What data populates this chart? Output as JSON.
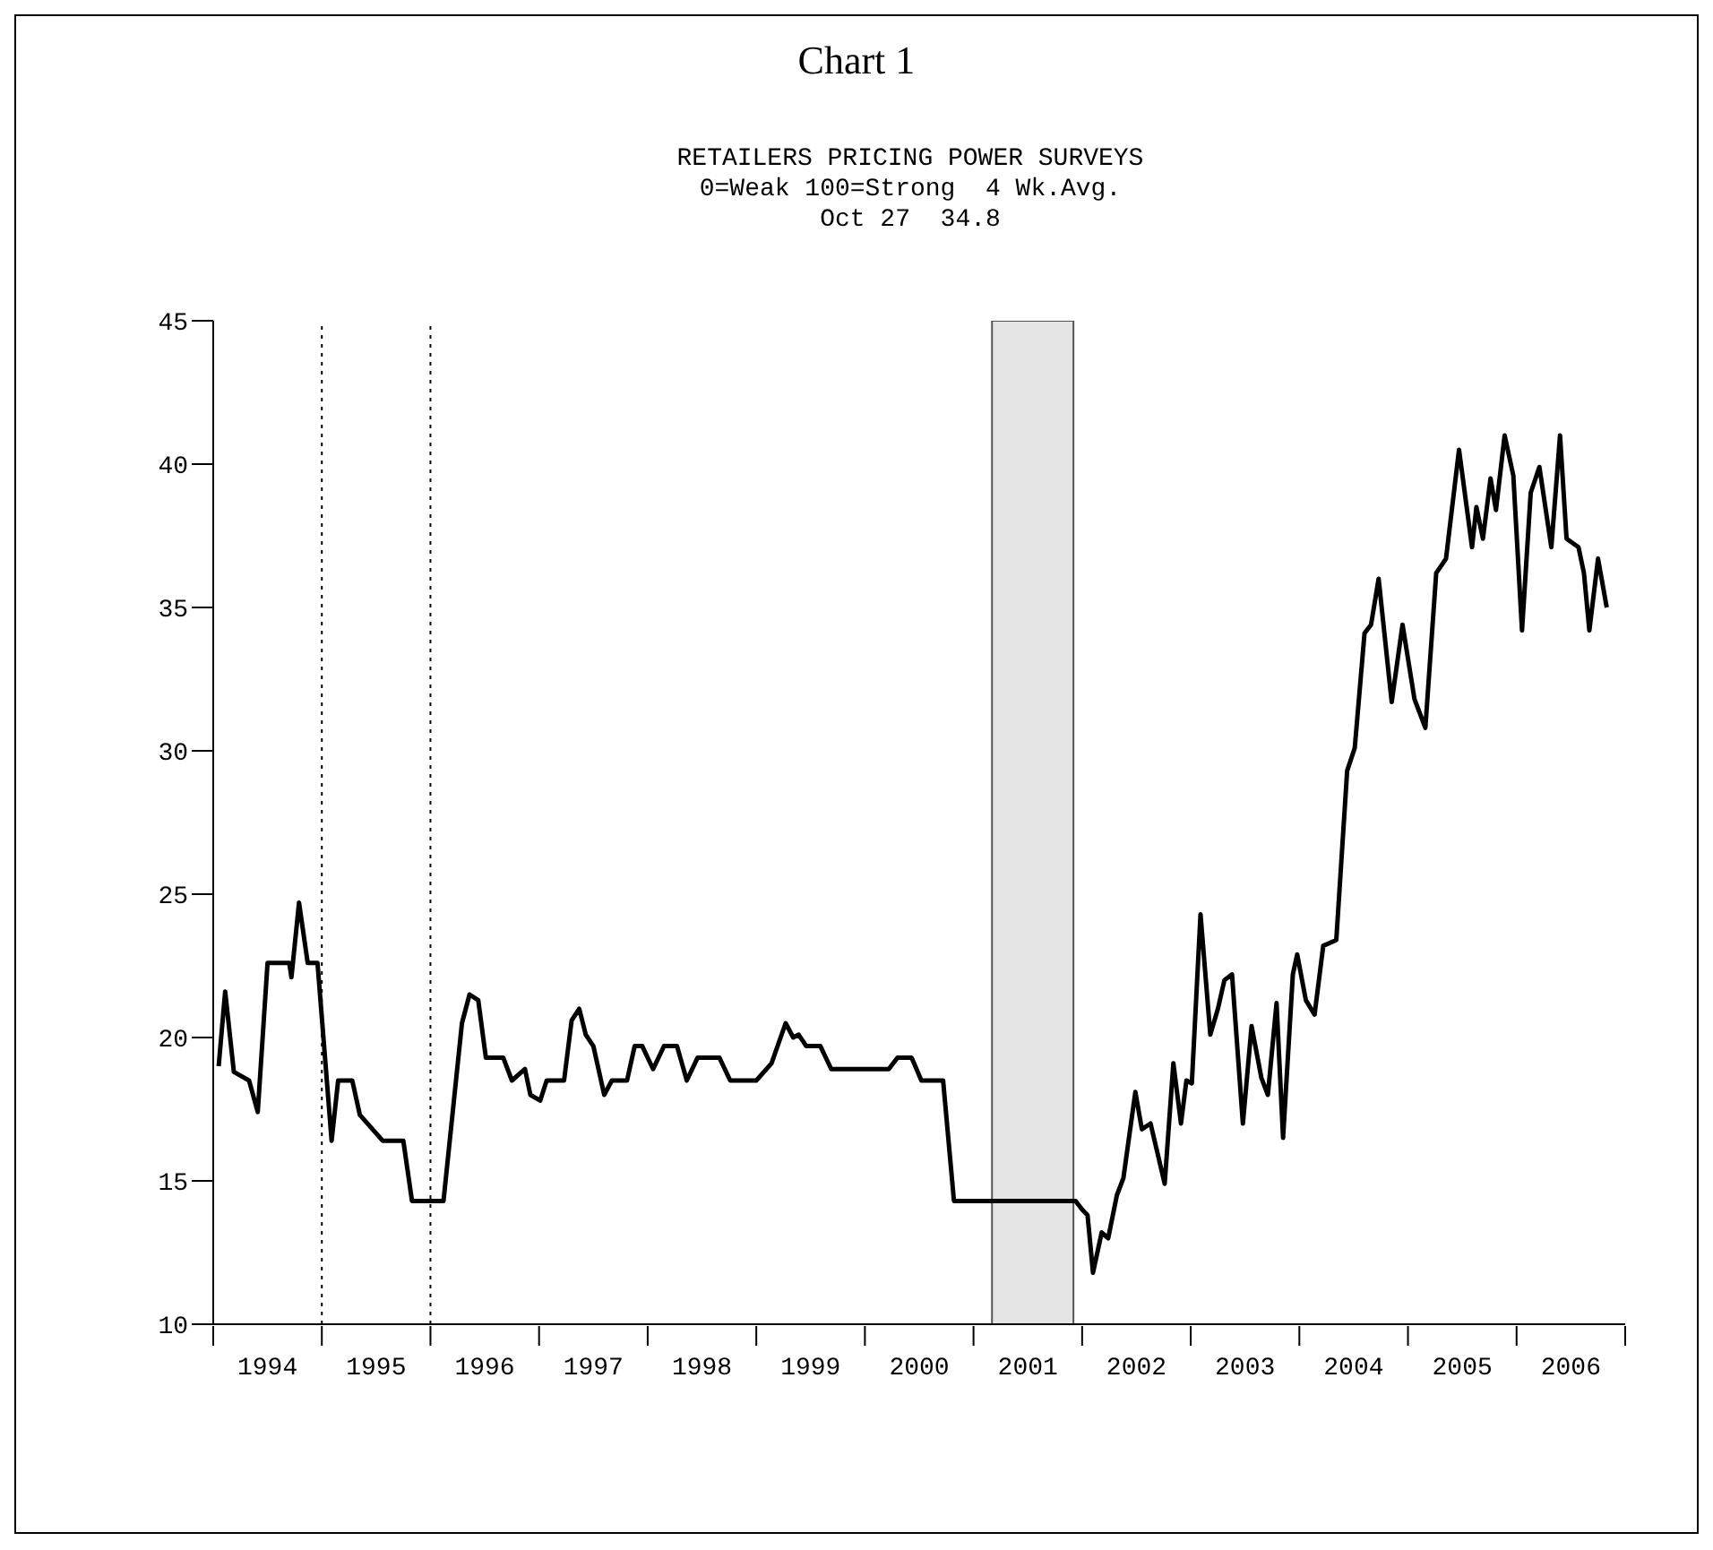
{
  "chart_data": {
    "type": "line",
    "title": "Chart 1",
    "subtitle": "RETAILERS PRICING POWER SURVEYS",
    "annotations": [
      "0=Weak 100=Strong  4 Wk.Avg.",
      "Oct 27  34.8"
    ],
    "x": [
      1994.05,
      1994.11,
      1994.19,
      1994.33,
      1994.41,
      1994.5,
      1994.7,
      1994.72,
      1994.79,
      1994.87,
      1994.96,
      1995.09,
      1995.15,
      1995.28,
      1995.35,
      1995.56,
      1995.75,
      1995.83,
      1996.12,
      1996.29,
      1996.36,
      1996.44,
      1996.51,
      1996.67,
      1996.75,
      1996.87,
      1996.92,
      1997.01,
      1997.07,
      1997.23,
      1997.3,
      1997.37,
      1997.43,
      1997.5,
      1997.6,
      1997.67,
      1997.81,
      1997.88,
      1997.95,
      1998.05,
      1998.15,
      1998.27,
      1998.36,
      1998.46,
      1998.66,
      1998.76,
      1999.0,
      1999.14,
      1999.27,
      1999.34,
      1999.39,
      1999.46,
      1999.59,
      1999.69,
      2000.22,
      2000.3,
      2000.43,
      2000.52,
      2000.72,
      2000.82,
      2001.94,
      2002.0,
      2002.05,
      2002.1,
      2002.18,
      2002.24,
      2002.32,
      2002.38,
      2002.49,
      2002.55,
      2002.63,
      2002.76,
      2002.84,
      2002.91,
      2002.96,
      2003.01,
      2003.09,
      2003.18,
      2003.25,
      2003.31,
      2003.38,
      2003.48,
      2003.56,
      2003.65,
      2003.71,
      2003.79,
      2003.85,
      2003.94,
      2003.98,
      2004.06,
      2004.14,
      2004.22,
      2004.34,
      2004.44,
      2004.51,
      2004.6,
      2004.66,
      2004.73,
      2004.85,
      2004.95,
      2005.06,
      2005.16,
      2005.26,
      2005.35,
      2005.47,
      2005.59,
      2005.63,
      2005.69,
      2005.76,
      2005.81,
      2005.89,
      2005.97,
      2006.05,
      2006.13,
      2006.21,
      2006.32,
      2006.4,
      2006.46,
      2006.57,
      2006.62,
      2006.67,
      2006.75,
      2006.83
    ],
    "series": [
      {
        "color": "#000000",
        "values": [
          19.0,
          21.6,
          18.8,
          18.5,
          17.4,
          22.6,
          22.6,
          22.1,
          24.7,
          22.6,
          22.6,
          16.4,
          18.5,
          18.5,
          17.3,
          16.4,
          16.4,
          14.3,
          14.3,
          20.5,
          21.5,
          21.3,
          19.3,
          19.3,
          18.5,
          18.9,
          18.0,
          17.8,
          18.5,
          18.5,
          20.6,
          21.0,
          20.1,
          19.7,
          18.0,
          18.5,
          18.5,
          19.7,
          19.7,
          18.9,
          19.7,
          19.7,
          18.5,
          19.3,
          19.3,
          18.5,
          18.5,
          19.1,
          20.5,
          20.0,
          20.1,
          19.7,
          19.7,
          18.9,
          18.9,
          19.3,
          19.3,
          18.5,
          18.5,
          14.3,
          14.3,
          14.0,
          13.8,
          11.8,
          13.2,
          13.0,
          14.5,
          15.1,
          18.1,
          16.8,
          17.0,
          14.9,
          19.1,
          17.0,
          18.5,
          18.4,
          24.3,
          20.1,
          21.0,
          22.0,
          22.2,
          17.0,
          20.4,
          18.6,
          18.0,
          21.2,
          16.5,
          22.2,
          22.9,
          21.3,
          20.8,
          23.2,
          23.4,
          29.3,
          30.1,
          34.1,
          34.4,
          36.0,
          31.7,
          34.4,
          31.8,
          30.8,
          36.2,
          36.7,
          40.5,
          37.1,
          38.5,
          37.4,
          39.5,
          38.4,
          41.0,
          39.6,
          34.2,
          39.0,
          39.9,
          37.1,
          41.0,
          37.4,
          37.1,
          36.2,
          34.2,
          36.7,
          35.0
        ]
      }
    ],
    "xlim": [
      1994,
      2007
    ],
    "xticks": [
      {
        "value": 1994,
        "label": null
      },
      {
        "value": 1994.5,
        "label": "1994"
      },
      {
        "value": 1995,
        "label": null
      },
      {
        "value": 1995.5,
        "label": "1995"
      },
      {
        "value": 1996,
        "label": null
      },
      {
        "value": 1996.5,
        "label": "1996"
      },
      {
        "value": 1997,
        "label": null
      },
      {
        "value": 1997.5,
        "label": "1997"
      },
      {
        "value": 1998,
        "label": null
      },
      {
        "value": 1998.5,
        "label": "1998"
      },
      {
        "value": 1999,
        "label": null
      },
      {
        "value": 1999.5,
        "label": "1999"
      },
      {
        "value": 2000,
        "label": null
      },
      {
        "value": 2000.5,
        "label": "2000"
      },
      {
        "value": 2001,
        "label": null
      },
      {
        "value": 2001.5,
        "label": "2001"
      },
      {
        "value": 2002,
        "label": null
      },
      {
        "value": 2002.5,
        "label": "2002"
      },
      {
        "value": 2003,
        "label": null
      },
      {
        "value": 2003.5,
        "label": "2003"
      },
      {
        "value": 2004,
        "label": null
      },
      {
        "value": 2004.5,
        "label": "2004"
      },
      {
        "value": 2005,
        "label": null
      },
      {
        "value": 2005.5,
        "label": "2005"
      },
      {
        "value": 2006,
        "label": null
      },
      {
        "value": 2006.5,
        "label": "2006"
      },
      {
        "value": 2007,
        "label": null
      }
    ],
    "ylim": [
      10,
      45
    ],
    "yticks": [
      10,
      15,
      20,
      25,
      30,
      35,
      40,
      45
    ],
    "grid": false,
    "marker": "none",
    "line_style": "solid",
    "ref_lines": [
      {
        "axis": "x",
        "value": 1995,
        "line_style": "dotted"
      },
      {
        "axis": "x",
        "value": 1996,
        "line_style": "dotted"
      }
    ],
    "bands": [
      {
        "axis": "x",
        "from": 2001.17,
        "to": 2001.92,
        "color": "#e4e4e4"
      }
    ]
  }
}
